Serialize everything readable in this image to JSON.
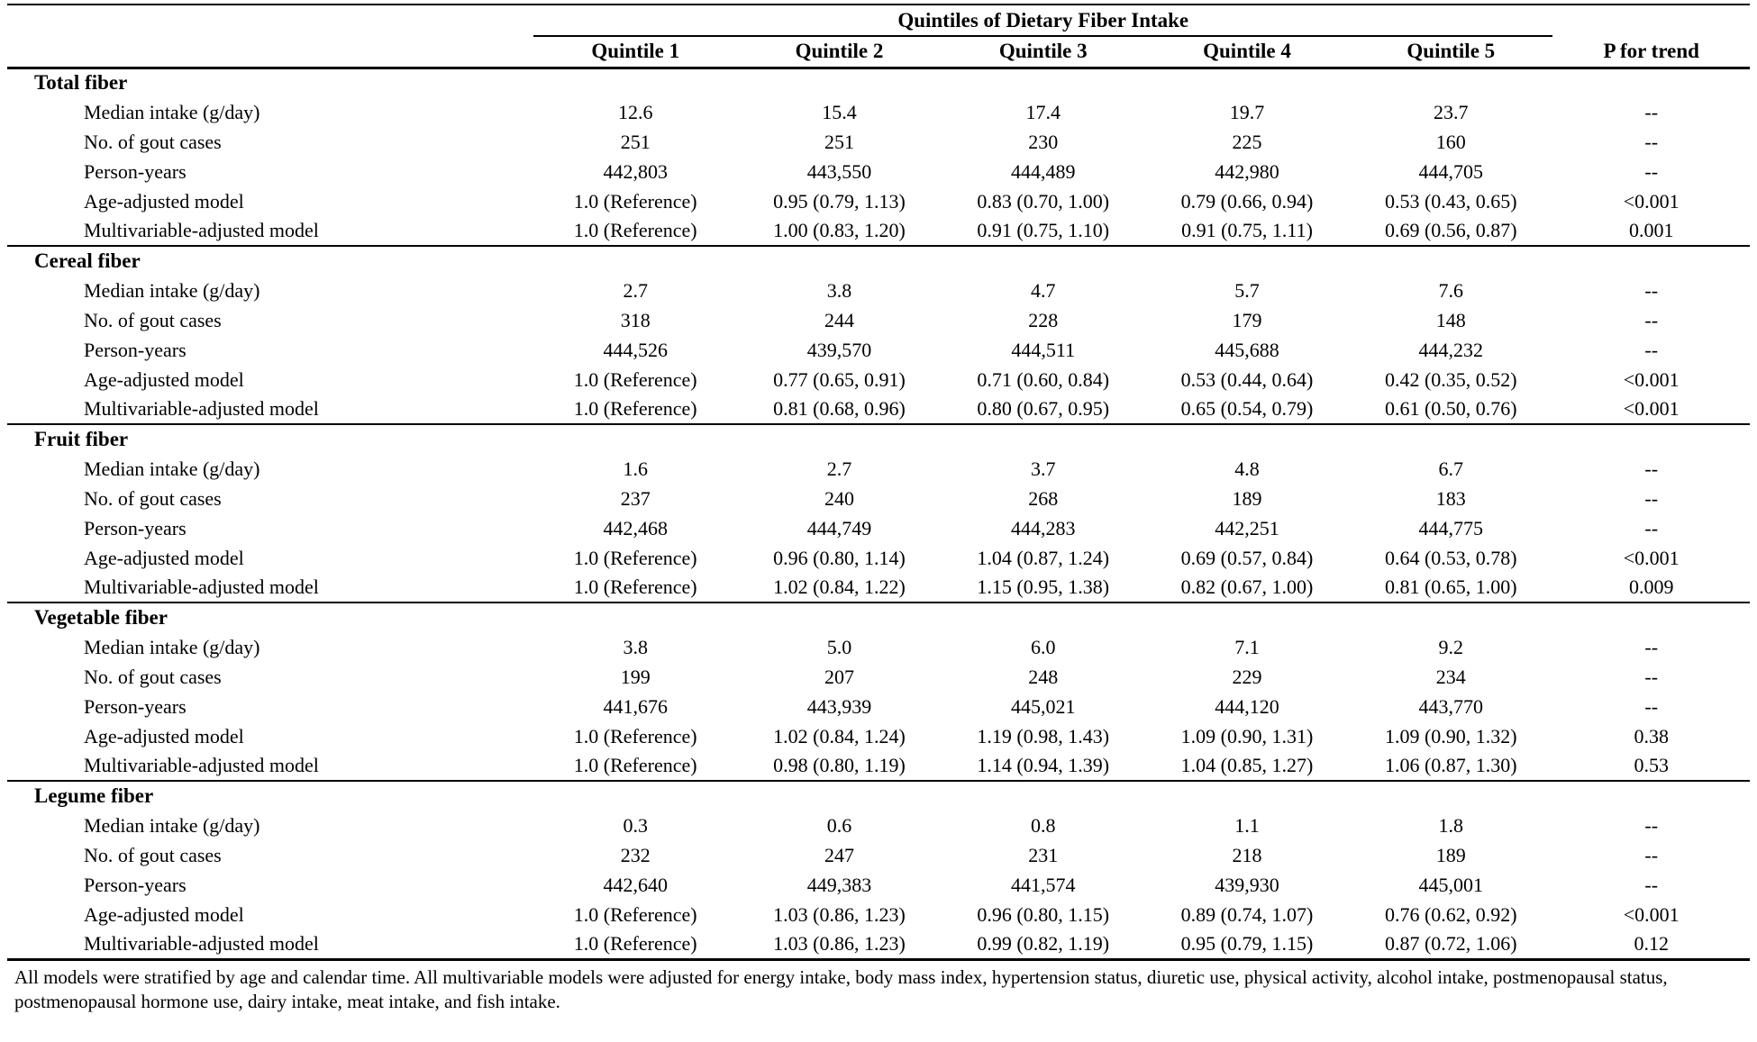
{
  "table": {
    "spanner": "Quintiles of Dietary Fiber Intake",
    "col_headers": [
      "Quintile 1",
      "Quintile 2",
      "Quintile 3",
      "Quintile 4",
      "Quintile 5"
    ],
    "p_header": "P for trend",
    "sections": [
      {
        "title": "Total fiber",
        "rows": [
          {
            "label": "Median intake (g/day)",
            "values": [
              "12.6",
              "15.4",
              "17.4",
              "19.7",
              "23.7"
            ],
            "p": "--"
          },
          {
            "label": "No. of gout cases",
            "values": [
              "251",
              "251",
              "230",
              "225",
              "160"
            ],
            "p": "--"
          },
          {
            "label": "Person-years",
            "values": [
              "442,803",
              "443,550",
              "444,489",
              "442,980",
              "444,705"
            ],
            "p": "--"
          },
          {
            "label": "Age-adjusted model",
            "values": [
              "1.0 (Reference)",
              "0.95 (0.79, 1.13)",
              "0.83 (0.70, 1.00)",
              "0.79 (0.66, 0.94)",
              "0.53 (0.43, 0.65)"
            ],
            "p": "<0.001"
          },
          {
            "label": "Multivariable-adjusted model",
            "values": [
              "1.0 (Reference)",
              "1.00 (0.83, 1.20)",
              "0.91 (0.75, 1.10)",
              "0.91 (0.75, 1.11)",
              "0.69 (0.56, 0.87)"
            ],
            "p": "0.001"
          }
        ]
      },
      {
        "title": "Cereal fiber",
        "rows": [
          {
            "label": "Median intake (g/day)",
            "values": [
              "2.7",
              "3.8",
              "4.7",
              "5.7",
              "7.6"
            ],
            "p": "--"
          },
          {
            "label": "No. of gout cases",
            "values": [
              "318",
              "244",
              "228",
              "179",
              "148"
            ],
            "p": "--"
          },
          {
            "label": "Person-years",
            "values": [
              "444,526",
              "439,570",
              "444,511",
              "445,688",
              "444,232"
            ],
            "p": "--"
          },
          {
            "label": "Age-adjusted model",
            "values": [
              "1.0 (Reference)",
              "0.77 (0.65, 0.91)",
              "0.71 (0.60, 0.84)",
              "0.53 (0.44, 0.64)",
              "0.42 (0.35, 0.52)"
            ],
            "p": "<0.001"
          },
          {
            "label": "Multivariable-adjusted model",
            "values": [
              "1.0 (Reference)",
              "0.81 (0.68, 0.96)",
              "0.80 (0.67, 0.95)",
              "0.65 (0.54, 0.79)",
              "0.61 (0.50, 0.76)"
            ],
            "p": "<0.001"
          }
        ]
      },
      {
        "title": "Fruit fiber",
        "rows": [
          {
            "label": "Median intake (g/day)",
            "values": [
              "1.6",
              "2.7",
              "3.7",
              "4.8",
              "6.7"
            ],
            "p": "--"
          },
          {
            "label": "No. of gout cases",
            "values": [
              "237",
              "240",
              "268",
              "189",
              "183"
            ],
            "p": "--"
          },
          {
            "label": "Person-years",
            "values": [
              "442,468",
              "444,749",
              "444,283",
              "442,251",
              "444,775"
            ],
            "p": "--"
          },
          {
            "label": "Age-adjusted model",
            "values": [
              "1.0 (Reference)",
              "0.96 (0.80, 1.14)",
              "1.04 (0.87, 1.24)",
              "0.69 (0.57, 0.84)",
              "0.64 (0.53, 0.78)"
            ],
            "p": "<0.001"
          },
          {
            "label": "Multivariable-adjusted model",
            "values": [
              "1.0 (Reference)",
              "1.02 (0.84, 1.22)",
              "1.15 (0.95, 1.38)",
              "0.82 (0.67, 1.00)",
              "0.81 (0.65, 1.00)"
            ],
            "p": "0.009"
          }
        ]
      },
      {
        "title": "Vegetable fiber",
        "rows": [
          {
            "label": "Median intake (g/day)",
            "values": [
              "3.8",
              "5.0",
              "6.0",
              "7.1",
              "9.2"
            ],
            "p": "--"
          },
          {
            "label": "No. of gout cases",
            "values": [
              "199",
              "207",
              "248",
              "229",
              "234"
            ],
            "p": "--"
          },
          {
            "label": "Person-years",
            "values": [
              "441,676",
              "443,939",
              "445,021",
              "444,120",
              "443,770"
            ],
            "p": "--"
          },
          {
            "label": "Age-adjusted model",
            "values": [
              "1.0 (Reference)",
              "1.02 (0.84, 1.24)",
              "1.19 (0.98, 1.43)",
              "1.09 (0.90, 1.31)",
              "1.09 (0.90, 1.32)"
            ],
            "p": "0.38"
          },
          {
            "label": "Multivariable-adjusted model",
            "values": [
              "1.0 (Reference)",
              "0.98 (0.80, 1.19)",
              "1.14 (0.94, 1.39)",
              "1.04 (0.85, 1.27)",
              "1.06 (0.87, 1.30)"
            ],
            "p": "0.53"
          }
        ]
      },
      {
        "title": "Legume fiber",
        "rows": [
          {
            "label": "Median intake (g/day)",
            "values": [
              "0.3",
              "0.6",
              "0.8",
              "1.1",
              "1.8"
            ],
            "p": "--"
          },
          {
            "label": "No. of gout cases",
            "values": [
              "232",
              "247",
              "231",
              "218",
              "189"
            ],
            "p": "--"
          },
          {
            "label": "Person-years",
            "values": [
              "442,640",
              "449,383",
              "441,574",
              "439,930",
              "445,001"
            ],
            "p": "--"
          },
          {
            "label": "Age-adjusted model",
            "values": [
              "1.0 (Reference)",
              "1.03 (0.86, 1.23)",
              "0.96 (0.80, 1.15)",
              "0.89 (0.74, 1.07)",
              "0.76 (0.62, 0.92)"
            ],
            "p": "<0.001"
          },
          {
            "label": "Multivariable-adjusted model",
            "values": [
              "1.0 (Reference)",
              "1.03 (0.86, 1.23)",
              "0.99 (0.82, 1.19)",
              "0.95 (0.79, 1.15)",
              "0.87 (0.72, 1.06)"
            ],
            "p": "0.12"
          }
        ]
      }
    ],
    "footnote": "All models were stratified by age and calendar time. All multivariable models were adjusted for energy intake, body mass index, hypertension status, diuretic use, physical activity, alcohol intake, postmenopausal status, postmenopausal hormone use, dairy intake, meat intake, and fish intake."
  }
}
